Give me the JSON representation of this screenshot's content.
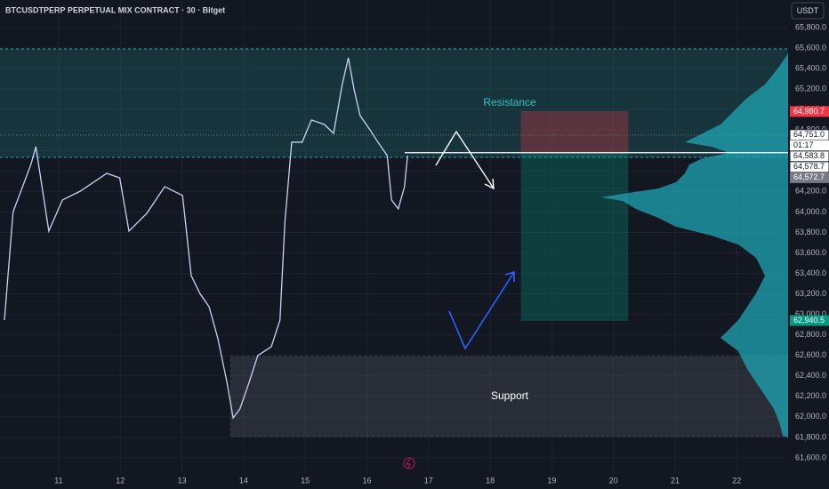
{
  "chart_data": {
    "type": "line",
    "title": "BTCUSDTPERP PERPETUAL MIX CONTRACT · 30 · Bitget",
    "currency": "USDT",
    "x": [
      10.12,
      10.26,
      10.55,
      10.63,
      10.84,
      11.06,
      11.35,
      11.78,
      11.99,
      12.14,
      12.43,
      12.72,
      13.01,
      13.15,
      13.29,
      13.44,
      13.58,
      13.73,
      13.83,
      13.94,
      14.09,
      14.23,
      14.45,
      14.59,
      14.67,
      14.78,
      14.95,
      15.1,
      15.31,
      15.46,
      15.6,
      15.7,
      15.79,
      15.89,
      16.04,
      16.18,
      16.33,
      16.4,
      16.51,
      16.61,
      16.66
    ],
    "series": [
      {
        "name": "BTCUSDTPERP",
        "color": "#c9d4f2",
        "values": [
          62945,
          64000,
          64464,
          64637,
          63813,
          64117,
          64203,
          64377,
          64333,
          63813,
          63987,
          64247,
          64160,
          63379,
          63205,
          63075,
          62771,
          62338,
          61990,
          62077,
          62338,
          62598,
          62685,
          62945,
          63900,
          64681,
          64681,
          64898,
          64854,
          64767,
          65245,
          65505,
          65201,
          64941,
          64811,
          64681,
          64550,
          64117,
          64030,
          64247,
          64550
        ]
      }
    ],
    "xlim": [
      10.048,
      22.833
    ],
    "xticks": [
      11,
      12,
      13,
      14,
      15,
      16,
      17,
      18,
      19,
      20,
      21,
      22
    ],
    "ylim": [
      61452,
      66069
    ],
    "yticks": [
      {
        "value": 61600,
        "label": "61,600.0"
      },
      {
        "value": 61800,
        "label": "61,800.0"
      },
      {
        "value": 62000,
        "label": "62,000.0"
      },
      {
        "value": 62200,
        "label": "62,200.0"
      },
      {
        "value": 62400,
        "label": "62,400.0"
      },
      {
        "value": 62600,
        "label": "62,600.0"
      },
      {
        "value": 62800,
        "label": "62,800.0"
      },
      {
        "value": 63000,
        "label": "63,000.0"
      },
      {
        "value": 63200,
        "label": "63,200.0"
      },
      {
        "value": 63400,
        "label": "63,400.0"
      },
      {
        "value": 63600,
        "label": "63,600.0"
      },
      {
        "value": 63800,
        "label": "63,800.0"
      },
      {
        "value": 64000,
        "label": "64,000.0"
      },
      {
        "value": 64200,
        "label": "64,200.0"
      },
      {
        "value": 64400,
        "label": "64,400.0"
      },
      {
        "value": 64600,
        "label": "64,600.0"
      },
      {
        "value": 64800,
        "label": "64,800.0"
      },
      {
        "value": 65000,
        "label": "65,000.0"
      },
      {
        "value": 65200,
        "label": "65,200.0"
      },
      {
        "value": 65400,
        "label": "65,400.0"
      },
      {
        "value": 65600,
        "label": "65,600.0"
      },
      {
        "value": 65800,
        "label": "65,800.0"
      }
    ],
    "resistance": {
      "label": "Resistance",
      "top": 65592,
      "bottom": 64533,
      "color": "#2ec4c4"
    },
    "support": {
      "label": "Support",
      "top": 62589,
      "bottom": 61808,
      "x": [
        13.79,
        22.833
      ]
    },
    "position": {
      "x": [
        18.5,
        20.24
      ],
      "stop": 64984,
      "entry": 64576,
      "target": 62936
    },
    "price_markers": [
      {
        "value": 64980.7,
        "label": "64,980.7",
        "color": "#f23645"
      },
      {
        "value": 64751.0,
        "label": "64,751.0",
        "color": "#ffffff"
      },
      {
        "value": 64583.8,
        "label": "64,583.8",
        "color": "#ffffff"
      },
      {
        "value": 64578.7,
        "label": "64,578.7",
        "color": "#ffffff"
      },
      {
        "value": 64572.7,
        "label": "64,572.7",
        "color": "#787b86"
      },
      {
        "value": 62940.5,
        "label": "62,940.5",
        "color": "#089981"
      }
    ],
    "countdown": "01:17"
  }
}
